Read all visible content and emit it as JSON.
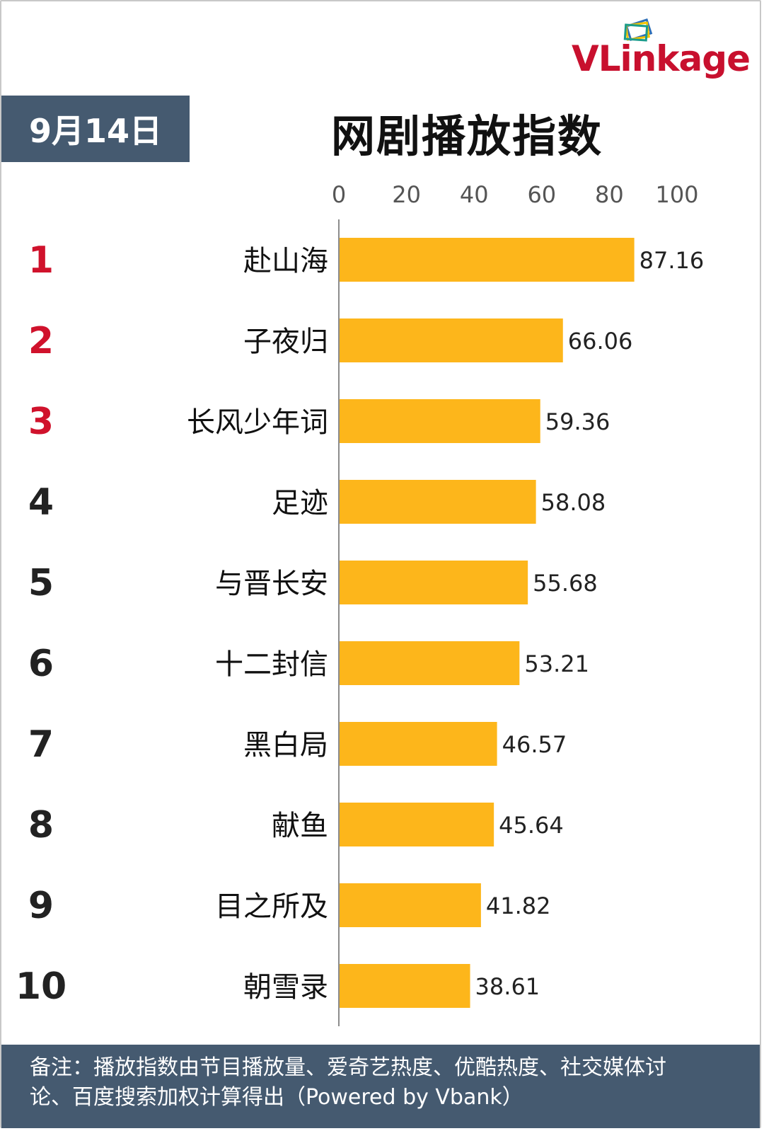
{
  "brand": {
    "logo_text": "VLinkage",
    "colors": {
      "red": "#c8102e",
      "accent_green": "#1a9c8c",
      "accent_yellow": "#f2c400",
      "accent_blue": "#2e6fb7"
    }
  },
  "header": {
    "date_label": "9月14日",
    "title": "网剧播放指数"
  },
  "chart_data": {
    "type": "bar",
    "orientation": "horizontal",
    "categories": [
      "赴山海",
      "子夜归",
      "长风少年词",
      "足迹",
      "与晋长安",
      "十二封信",
      "黑白局",
      "献鱼",
      "目之所及",
      "朝雪录"
    ],
    "ranks": [
      "1",
      "2",
      "3",
      "4",
      "5",
      "6",
      "7",
      "8",
      "9",
      "10"
    ],
    "values": [
      87.16,
      66.06,
      59.36,
      58.08,
      55.68,
      53.21,
      46.57,
      45.64,
      41.82,
      38.61
    ],
    "value_labels": [
      "87.16",
      "66.06",
      "59.36",
      "58.08",
      "55.68",
      "53.21",
      "46.57",
      "45.64",
      "41.82",
      "38.61"
    ],
    "xticks": [
      "0",
      "20",
      "40",
      "60",
      "80",
      "100"
    ],
    "xlim": [
      0,
      100
    ],
    "axis_position": "top",
    "grid": false,
    "legend": "none",
    "bar_color": "#fdb61b",
    "top_rank_color": "#d0122c",
    "rank_color": "#222222"
  },
  "footer": {
    "note_line1": "备注：播放指数由节目播放量、爱奇艺热度、优酷热度、社交媒体讨",
    "note_line2": "论、百度搜索加权计算得出（Powered by Vbank）"
  }
}
